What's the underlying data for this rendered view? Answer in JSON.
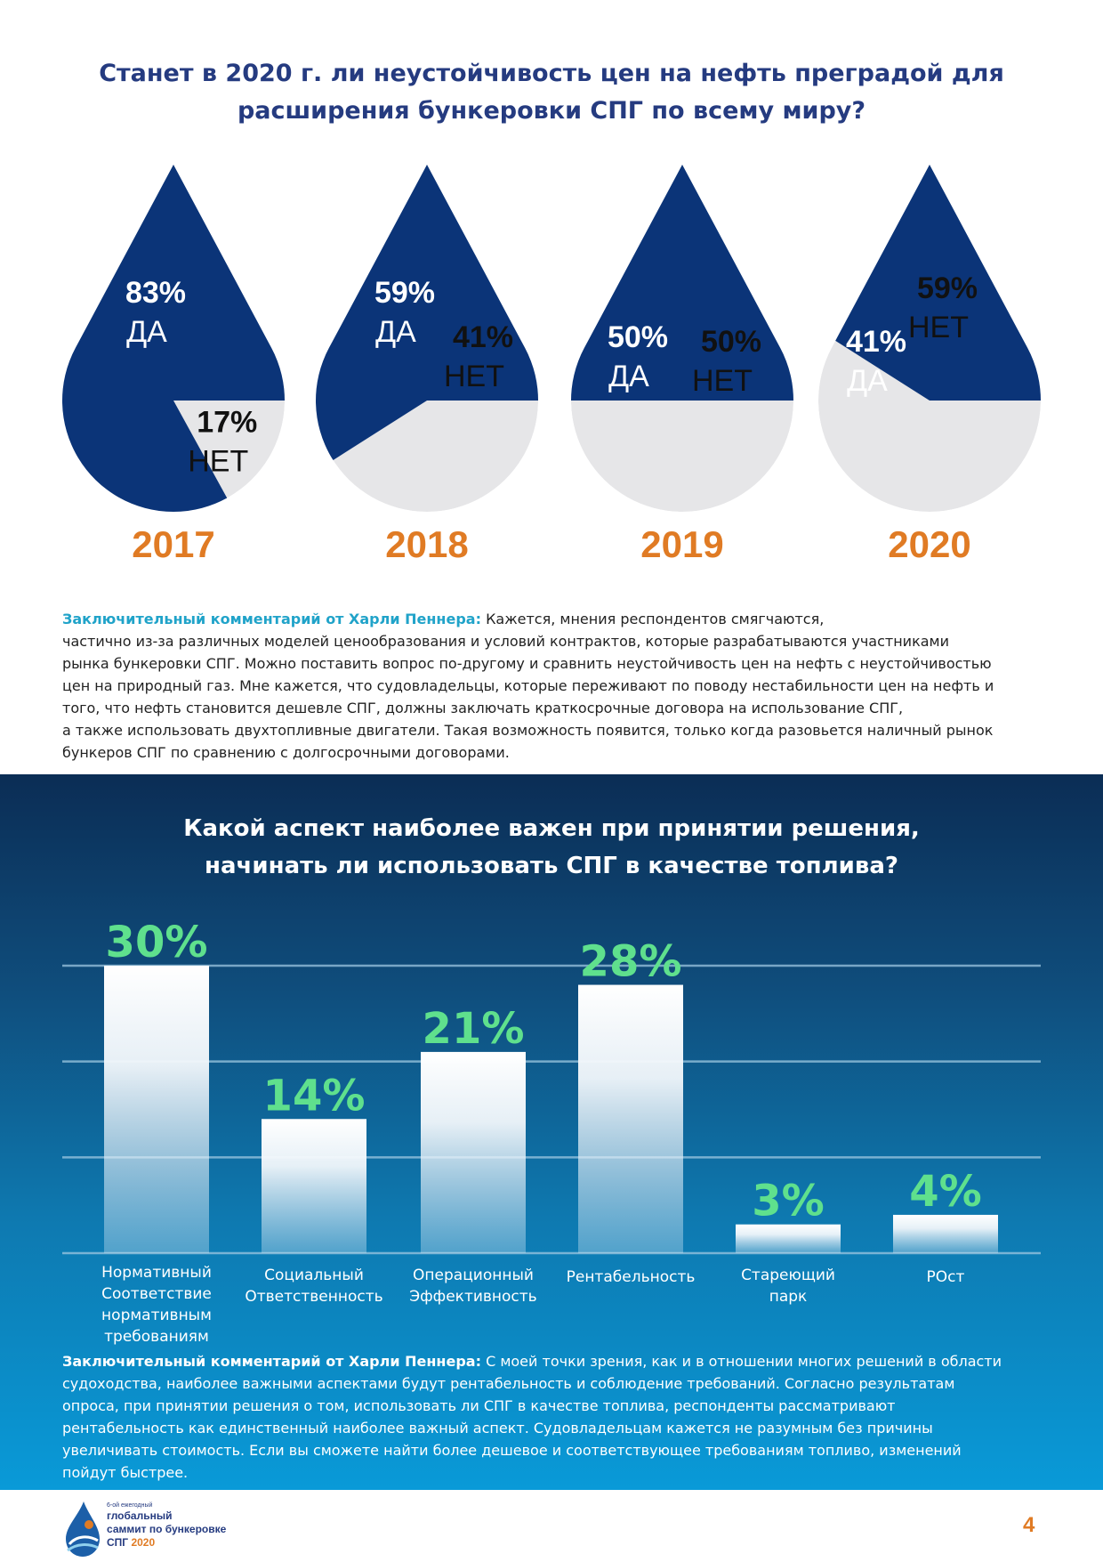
{
  "question1": {
    "title_line1": "Станет в 2020 г. ли неустойчивость цен на нефть преградой для",
    "title_line2": "расширения бункеровки СПГ по всему миру?"
  },
  "chart_data": [
    {
      "type": "pie",
      "title": "Станет в 2020 г. ли неустойчивость цен на нефть преградой для расширения бункеровки СПГ по всему миру?",
      "categories": [
        "2017",
        "2018",
        "2019",
        "2020"
      ],
      "series": [
        {
          "name": "ДА",
          "values": [
            83,
            59,
            50,
            41
          ]
        },
        {
          "name": "НЕТ",
          "values": [
            17,
            41,
            50,
            59
          ]
        }
      ],
      "drops": [
        {
          "year": "2017",
          "yes": 83,
          "no": 17,
          "yes_pct": "83%",
          "no_pct": "17%",
          "yes_label": "ДА",
          "no_label": "НЕТ"
        },
        {
          "year": "2018",
          "yes": 59,
          "no": 41,
          "yes_pct": "59%",
          "no_pct": "41%",
          "yes_label": "ДА",
          "no_label": "НЕТ"
        },
        {
          "year": "2019",
          "yes": 50,
          "no": 50,
          "yes_pct": "50%",
          "no_pct": "50%",
          "yes_label": "ДА",
          "no_label": "НЕТ"
        },
        {
          "year": "2020",
          "yes": 41,
          "no": 59,
          "yes_pct": "41%",
          "no_pct": "59%",
          "yes_label": "ДА",
          "no_label": "НЕТ"
        }
      ],
      "colors": {
        "yes": "#0b3478",
        "no": "#e6e6e8"
      }
    },
    {
      "type": "bar",
      "title": "Какой аспект наиболее важен при принятии решения, начинать ли использовать СПГ в качестве топлива?",
      "categories": [
        [
          "Нормативный",
          "Соответствие",
          "нормативным",
          "требованиям"
        ],
        [
          "Социальный",
          "Ответственность"
        ],
        [
          "Операционный",
          "Эффективность"
        ],
        [
          "Рентабельность"
        ],
        [
          "Стареющий",
          "парк"
        ],
        [
          "РОст"
        ]
      ],
      "values": [
        30,
        14,
        21,
        28,
        3,
        4
      ],
      "value_labels": [
        "30%",
        "14%",
        "21%",
        "28%",
        "3%",
        "4%"
      ],
      "ylim": [
        0,
        30
      ],
      "grid": true,
      "colors": {
        "value": "#5fe08d",
        "bar_top": "#ffffff",
        "gridline": "#9ec7e0"
      }
    }
  ],
  "comment1": {
    "label": "Заключительный комментарий от Харли Пеннера:",
    "line1": "Кажется, мнения респондентов смягчаются,",
    "line2": "частично из-за различных моделей ценообразования и условий контрактов, которые разрабатываются участниками",
    "line3": "рынка бункеровки СПГ. Можно поставить вопрос по-другому и сравнить неустойчивость цен на нефть с неустойчивостью",
    "line4": "цен на природный газ.  Мне кажется, что судовладельцы, которые переживают по поводу нестабильности цен на нефть и",
    "line5": "того, что нефть становится дешевле СПГ, должны заключать краткосрочные договора на использование СПГ,",
    "line6": "а также использовать двухтопливные двигатели. Такая возможность появится, только когда разовьется наличный рынок",
    "line7": "бункеров СПГ по сравнению с долгосрочными договорами."
  },
  "question2": {
    "title_line1": "Какой аспект наиболее важен при принятии решения,",
    "title_line2": "начинать ли использовать СПГ в качестве топлива?"
  },
  "comment2": {
    "label": "Заключительный комментарий от Харли Пеннера:",
    "line1": "С моей точки зрения, как и в отношении многих решений в области",
    "line2": "судоходства, наиболее важными аспектами будут рентабельность и соблюдение требований. Согласно результатам",
    "line3": "опроса, при принятии решения о том, использовать ли СПГ в качестве топлива, респонденты рассматривают",
    "line4": "рентабельность как единственный наиболее важный аспект. Судовладельцам кажется не разумным без причины",
    "line5": "увеличивать стоимость. Если вы сможете найти более дешевое и соответствующее требованиям топливо, изменений",
    "line6": "пойдут быстрее."
  },
  "footer": {
    "logo_line0": "6-ой ежегодный",
    "logo_line1": "глобальный",
    "logo_line2": "саммит по бункеровке",
    "logo_line3": "СПГ",
    "logo_year": "2020",
    "page_number": "4"
  }
}
